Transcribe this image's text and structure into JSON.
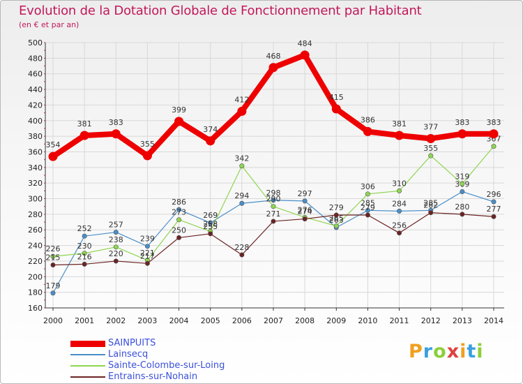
{
  "title": "Evolution de la Dotation Globale de Fonctionnement par Habitant",
  "subtitle": "(en € et par an)",
  "logo_text": "Proxiti",
  "colors": {
    "title": "#c2185b",
    "legend_text": "#3a50d9",
    "grid": "#d8d8d8",
    "axis": "#333333"
  },
  "chart_data": {
    "type": "line",
    "title": "Evolution de la Dotation Globale de Fonctionnement par Habitant",
    "subtitle": "(en € et par an)",
    "xlabel": "",
    "ylabel": "",
    "grid": true,
    "legend_position": "bottom-left",
    "ylim": [
      160,
      500
    ],
    "yticks": [
      160,
      180,
      200,
      220,
      240,
      260,
      280,
      300,
      320,
      340,
      360,
      380,
      400,
      420,
      440,
      460,
      480,
      500
    ],
    "x": [
      "2000",
      "2001",
      "2002",
      "2003",
      "2004",
      "2005",
      "2006",
      "2007",
      "2008",
      "2009",
      "2010",
      "2011",
      "2012",
      "2013",
      "2014"
    ],
    "series": [
      {
        "name": "SAINPUITS",
        "color": "#ee0000",
        "highlight": true,
        "values": [
          354,
          381,
          383,
          355,
          399,
          374,
          412,
          468,
          484,
          415,
          386,
          381,
          377,
          383,
          383
        ]
      },
      {
        "name": "Lainsecq",
        "color": "#4a8ec8",
        "highlight": false,
        "values": [
          179,
          252,
          257,
          239,
          286,
          269,
          294,
          298,
          297,
          263,
          285,
          284,
          285,
          309,
          296
        ]
      },
      {
        "name": "Sainte-Colombe-sur-Loing",
        "color": "#8ed650",
        "highlight": false,
        "values": [
          226,
          230,
          238,
          221,
          273,
          258,
          342,
          290,
          276,
          265,
          306,
          310,
          355,
          319,
          367
        ]
      },
      {
        "name": "Entrains-sur-Nohain",
        "color": "#6b2323",
        "highlight": false,
        "values": [
          215,
          216,
          220,
          217,
          250,
          255,
          228,
          271,
          274,
          279,
          279,
          256,
          282,
          280,
          277
        ]
      }
    ]
  }
}
